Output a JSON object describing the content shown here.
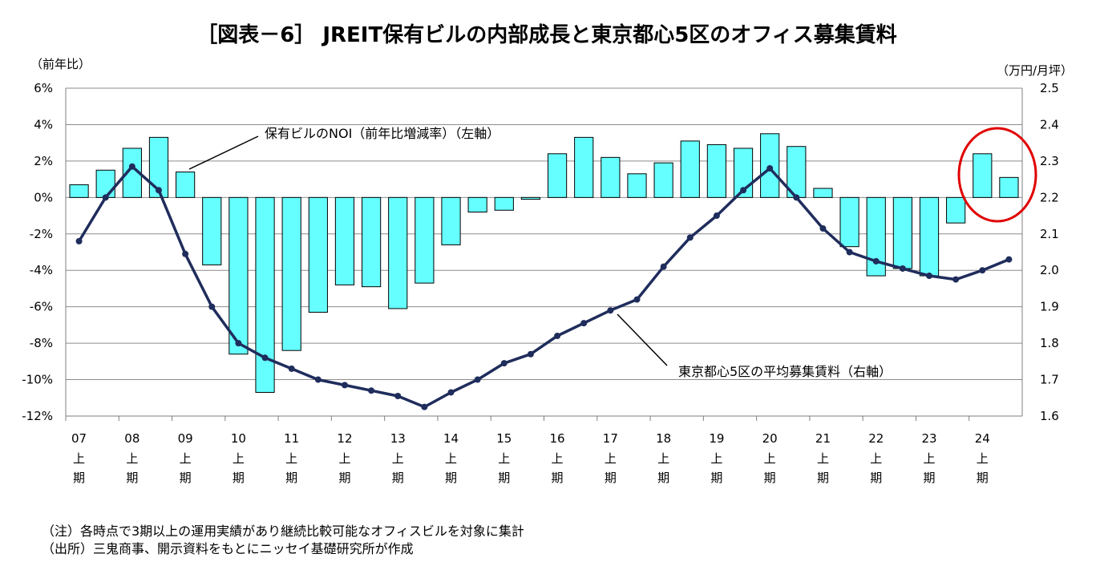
{
  "chart_data": {
    "type": "bar+line",
    "title": "［図表－6］ JREIT保有ビルの内部成長と東京都心5区のオフィス募集賃料",
    "left_axis_unit": "（前年比）",
    "right_axis_unit": "（万円/月坪）",
    "left_axis": {
      "min": -12,
      "max": 6,
      "step": 2,
      "tick_labels": [
        "6%",
        "4%",
        "2%",
        "0%",
        "-2%",
        "-4%",
        "-6%",
        "-8%",
        "-10%",
        "-12%"
      ]
    },
    "right_axis": {
      "min": 1.6,
      "max": 2.5,
      "step": 0.1,
      "tick_labels": [
        "2.5",
        "2.4",
        "2.3",
        "2.2",
        "2.1",
        "2.0",
        "1.9",
        "1.8",
        "1.7",
        "1.6"
      ]
    },
    "x_labels": [
      {
        "year": "07",
        "half": "上",
        "period": "期"
      },
      {
        "year": "08",
        "half": "上",
        "period": "期"
      },
      {
        "year": "09",
        "half": "上",
        "period": "期"
      },
      {
        "year": "10",
        "half": "上",
        "period": "期"
      },
      {
        "year": "11",
        "half": "上",
        "period": "期"
      },
      {
        "year": "12",
        "half": "上",
        "period": "期"
      },
      {
        "year": "13",
        "half": "上",
        "period": "期"
      },
      {
        "year": "14",
        "half": "上",
        "period": "期"
      },
      {
        "year": "15",
        "half": "上",
        "period": "期"
      },
      {
        "year": "16",
        "half": "上",
        "period": "期"
      },
      {
        "year": "17",
        "half": "上",
        "period": "期"
      },
      {
        "year": "18",
        "half": "上",
        "period": "期"
      },
      {
        "year": "19",
        "half": "上",
        "period": "期"
      },
      {
        "year": "20",
        "half": "上",
        "period": "期"
      },
      {
        "year": "21",
        "half": "上",
        "period": "期"
      },
      {
        "year": "22",
        "half": "上",
        "period": "期"
      },
      {
        "year": "23",
        "half": "上",
        "period": "期"
      },
      {
        "year": "24",
        "half": "上",
        "period": "期"
      }
    ],
    "series": [
      {
        "name": "保有ビルのNOI（前年比増減率）（左軸）",
        "type": "bar",
        "axis": "left",
        "color": "#66FFFF",
        "values": [
          0.7,
          1.5,
          2.7,
          3.3,
          1.4,
          -3.7,
          -8.6,
          -10.7,
          -8.4,
          -6.3,
          -4.8,
          -4.9,
          -6.1,
          -4.7,
          -2.6,
          -0.8,
          -0.7,
          -0.1,
          2.4,
          3.3,
          2.2,
          1.3,
          1.9,
          3.1,
          2.9,
          2.7,
          3.5,
          2.8,
          0.5,
          -2.7,
          -4.3,
          -3.9,
          -4.3,
          -1.4,
          2.4,
          1.1
        ]
      },
      {
        "name": "東京都心5区の平均募集賃料（右軸）",
        "type": "line",
        "axis": "right",
        "color": "#1F2D5C",
        "values": [
          2.08,
          2.2,
          2.285,
          2.22,
          2.045,
          1.9,
          1.8,
          1.76,
          1.73,
          1.7,
          1.685,
          1.67,
          1.655,
          1.625,
          1.665,
          1.7,
          1.745,
          1.77,
          1.82,
          1.855,
          1.89,
          1.92,
          2.01,
          2.09,
          2.15,
          2.22,
          2.28,
          2.2,
          2.115,
          2.05,
          2.025,
          2.005,
          1.985,
          1.975,
          2.0,
          2.03
        ]
      }
    ],
    "annotations": [
      {
        "text": "保有ビルのNOI（前年比増減率）（左軸）"
      },
      {
        "text": "東京都心5区の平均募集賃料（右軸）"
      }
    ],
    "highlight": {
      "description": "red circle",
      "color": "#E00000"
    }
  },
  "notes": {
    "note": "（注）各時点で3期以上の運用実績があり継続比較可能なオフィスビルを対象に集計",
    "source": "（出所）三鬼商事、開示資料をもとにニッセイ基礎研究所が作成"
  }
}
